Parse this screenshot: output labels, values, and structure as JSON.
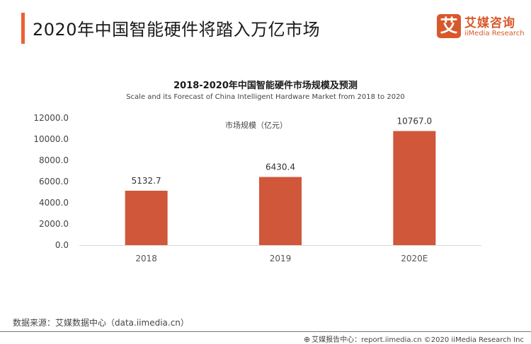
{
  "header": {
    "title": "2020年中国智能硬件将踏入万亿市场",
    "accent_color": "#ee6034"
  },
  "logo": {
    "mark": "艾",
    "cn": "艾媒咨询",
    "en": "iiMedia Research",
    "color": "#d9582b"
  },
  "chart_data": {
    "type": "bar",
    "title": "2018-2020年中国智能硬件市场规模及预测",
    "subtitle": "Scale and its Forecast of China Intelligent Hardware Market from 2018 to 2020",
    "legend": "市场规模（亿元）",
    "legend_position": "top-center",
    "categories": [
      "2018",
      "2019",
      "2020E"
    ],
    "values": [
      5132.7,
      6430.4,
      10767.0
    ],
    "value_labels": [
      "5132.7",
      "6430.4",
      "10767.0"
    ],
    "ylim": [
      0,
      12000
    ],
    "yticks": [
      "0.0",
      "2000.0",
      "4000.0",
      "6000.0",
      "8000.0",
      "10000.0",
      "12000.0"
    ],
    "ytick_values": [
      0,
      2000,
      4000,
      6000,
      8000,
      10000,
      12000
    ],
    "grid": false,
    "xlabel": "",
    "ylabel": "",
    "bar_color": "#d0573a"
  },
  "footer": {
    "source": "数据来源：艾媒数据中心（data.iimedia.cn）",
    "report": "艾媒报告中心：report.iimedia.cn  ©2020  iiMedia Research Inc"
  }
}
